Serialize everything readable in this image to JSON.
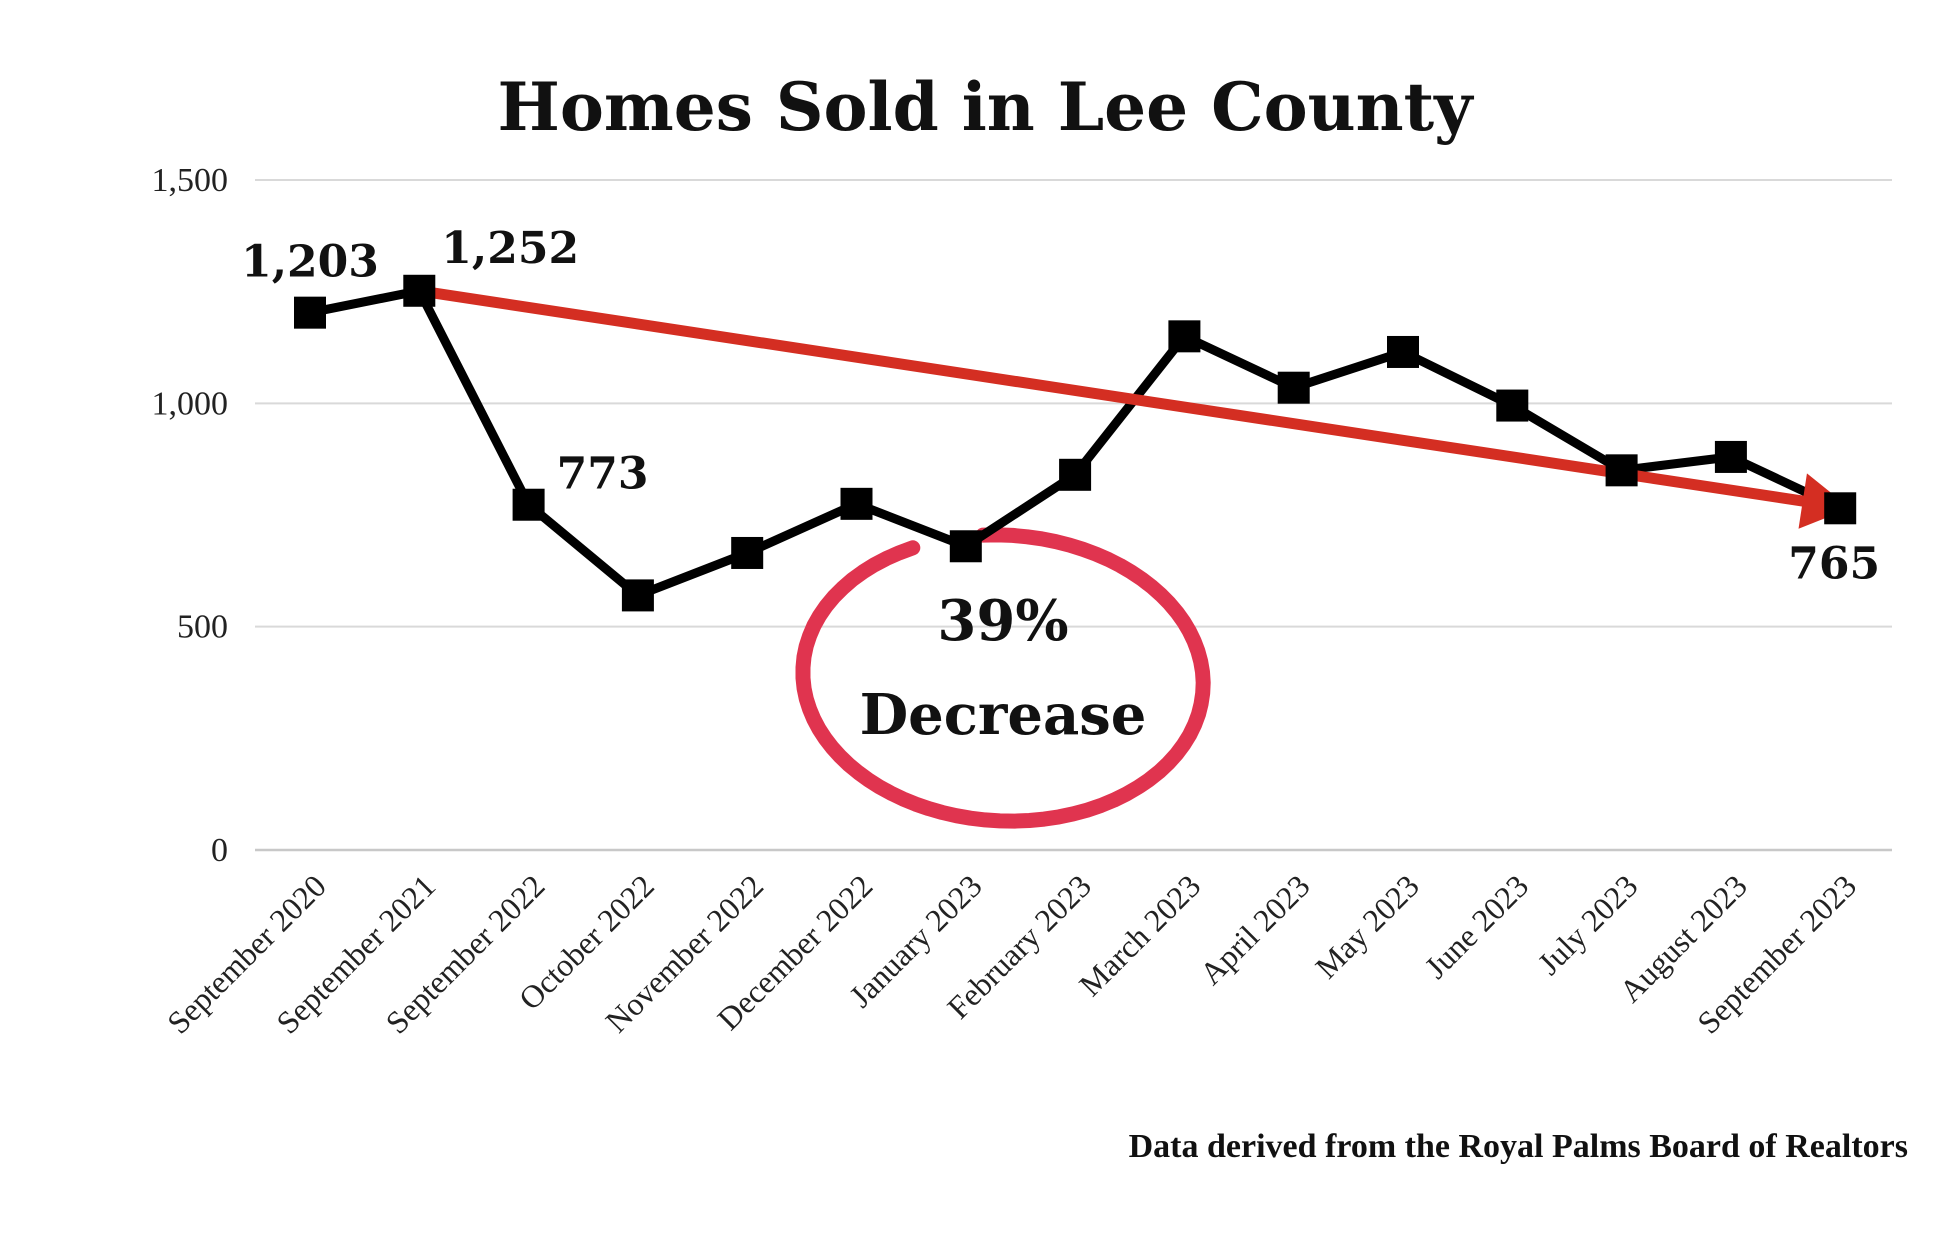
{
  "chart_data": {
    "type": "line",
    "title": "Homes Sold in Lee County",
    "xlabel": "",
    "ylabel": "",
    "ylim": [
      0,
      1500
    ],
    "yticks": [
      "0",
      "500",
      "1,000",
      "1,500"
    ],
    "ytick_values": [
      0,
      500,
      1000,
      1500
    ],
    "grid": true,
    "categories": [
      "September 2020",
      "September 2021",
      "September 2022",
      "October 2022",
      "November 2022",
      "December 2022",
      "January 2023",
      "February 2023",
      "March 2023",
      "April 2023",
      "May 2023",
      "June 2023",
      "July 2023",
      "August 2023",
      "September 2023"
    ],
    "series": [
      {
        "values": [
          1203,
          1252,
          773,
          570,
          665,
          775,
          680,
          840,
          1150,
          1035,
          1115,
          995,
          850,
          880,
          765
        ],
        "color": "#000000"
      }
    ],
    "data_labels": [
      {
        "index": 0,
        "text": "1,203"
      },
      {
        "index": 1,
        "text": "1,252"
      },
      {
        "index": 2,
        "text": "773"
      },
      {
        "index": 14,
        "text": "765"
      }
    ],
    "trend_arrow": {
      "from_index": 1,
      "to_index": 14,
      "color": "#d42e22"
    },
    "annotation": {
      "line1": "39%",
      "line2": "Decrease",
      "circle_color": "#e0344f"
    },
    "source": "Data derived from the Royal Palms Board of Realtors"
  }
}
